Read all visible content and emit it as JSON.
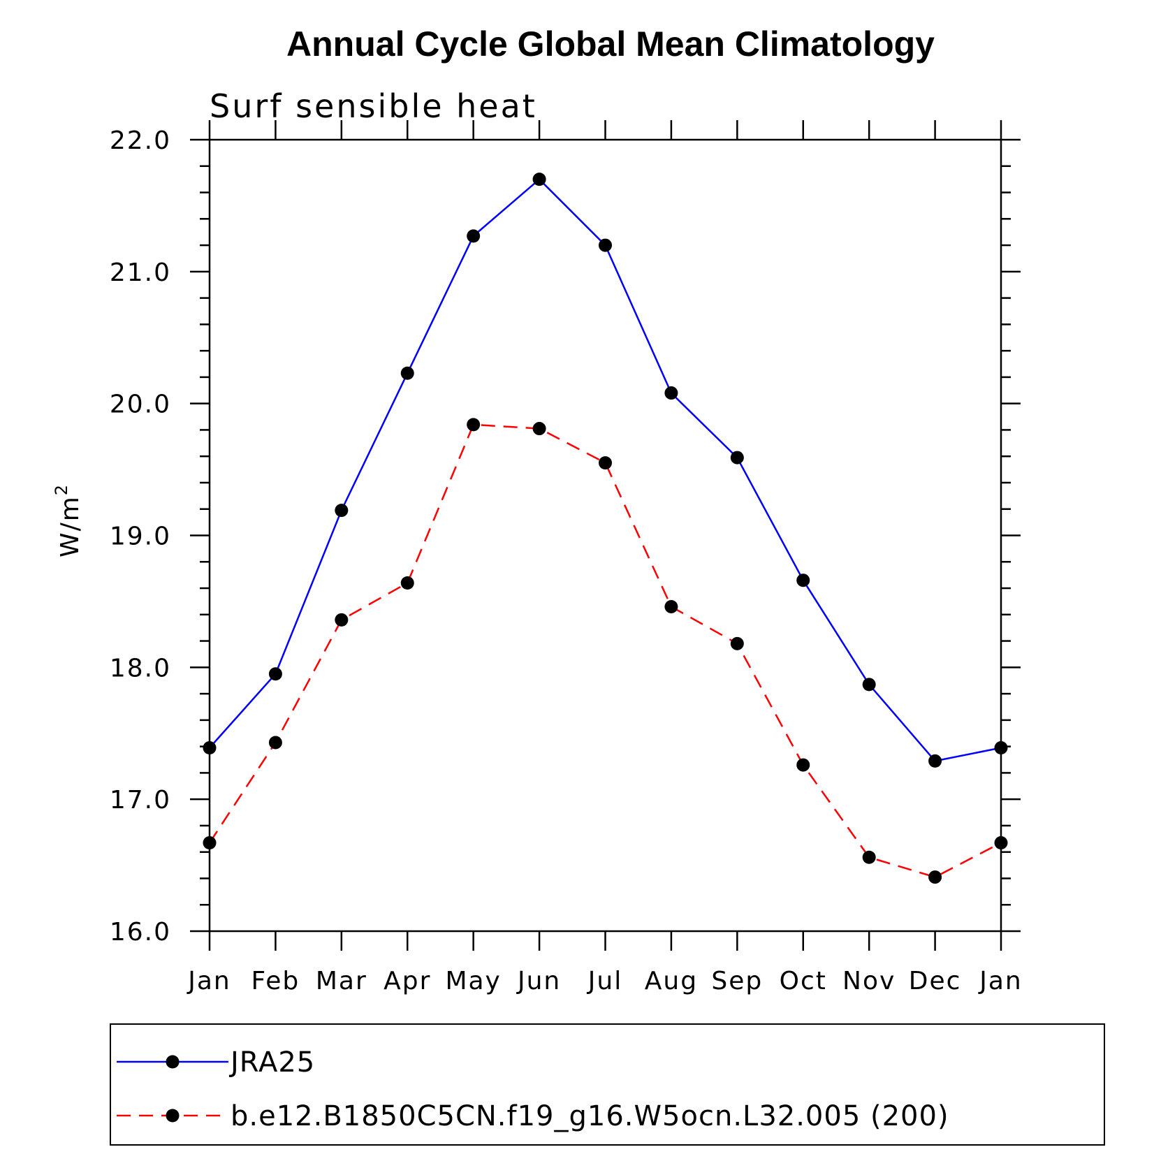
{
  "chart_data": {
    "type": "line",
    "title": "Annual Cycle Global Mean Climatology",
    "subtitle": "Surf sensible heat",
    "ylabel_base": "W/m",
    "ylabel_sup": "2",
    "categories": [
      "Jan",
      "Feb",
      "Mar",
      "Apr",
      "May",
      "Jun",
      "Jul",
      "Aug",
      "Sep",
      "Oct",
      "Nov",
      "Dec",
      "Jan"
    ],
    "ylim": [
      16.0,
      22.0
    ],
    "yticks": [
      "16.0",
      "17.0",
      "18.0",
      "19.0",
      "20.0",
      "21.0",
      "22.0"
    ],
    "grid": false,
    "legend_position": "bottom",
    "series": [
      {
        "name": "JRA25",
        "color": "#0000ff",
        "dashed": false,
        "values": [
          17.39,
          17.95,
          19.19,
          20.23,
          21.27,
          21.7,
          21.2,
          20.08,
          19.59,
          18.66,
          17.87,
          17.29,
          17.39
        ]
      },
      {
        "name": "b.e12.B1850C5CN.f19_g16.W5ocn.L32.005 (200)",
        "color": "#ff0000",
        "dashed": true,
        "values": [
          16.67,
          17.43,
          18.36,
          18.64,
          19.84,
          19.81,
          19.55,
          18.46,
          18.18,
          17.26,
          16.56,
          16.41,
          16.67
        ]
      }
    ]
  }
}
